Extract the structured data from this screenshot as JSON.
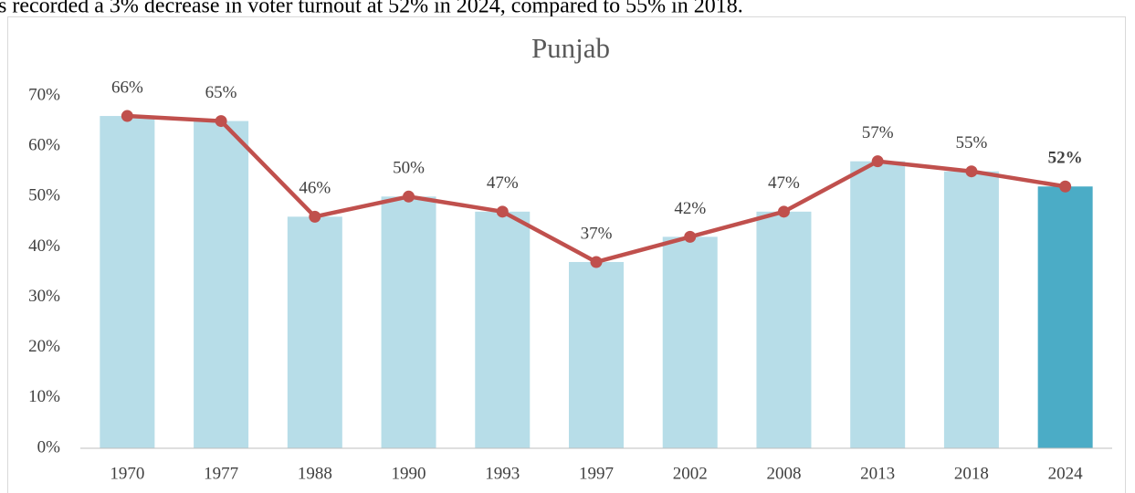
{
  "caption": "s recorded a 3% decrease in voter turnout at 52% in 2024, compared to 55% in 2018.",
  "chart_data": {
    "type": "bar_line",
    "title": "Punjab",
    "categories": [
      "1970",
      "1977",
      "1988",
      "1990",
      "1993",
      "1997",
      "2002",
      "2008",
      "2013",
      "2018",
      "2024"
    ],
    "values": [
      66,
      65,
      46,
      50,
      47,
      37,
      42,
      47,
      57,
      55,
      52
    ],
    "value_labels": [
      "66%",
      "65%",
      "46%",
      "50%",
      "47%",
      "37%",
      "42%",
      "47%",
      "57%",
      "55%",
      "52%"
    ],
    "label_weights": [
      "normal",
      "normal",
      "normal",
      "normal",
      "normal",
      "normal",
      "normal",
      "normal",
      "normal",
      "normal",
      "bold"
    ],
    "bar_colors": [
      "#b7dde8",
      "#b7dde8",
      "#b7dde8",
      "#b7dde8",
      "#b7dde8",
      "#b7dde8",
      "#b7dde8",
      "#b7dde8",
      "#b7dde8",
      "#b7dde8",
      "#4bacc6"
    ],
    "line_color": "#c0504d",
    "ylim": [
      0,
      70
    ],
    "yticks": [
      {
        "value": 0,
        "label": "0%"
      },
      {
        "value": 10,
        "label": "10%"
      },
      {
        "value": 20,
        "label": "20%"
      },
      {
        "value": 30,
        "label": "30%"
      },
      {
        "value": 40,
        "label": "40%"
      },
      {
        "value": 50,
        "label": "50%"
      },
      {
        "value": 60,
        "label": "60%"
      },
      {
        "value": 70,
        "label": "70%"
      }
    ],
    "grid": false
  }
}
